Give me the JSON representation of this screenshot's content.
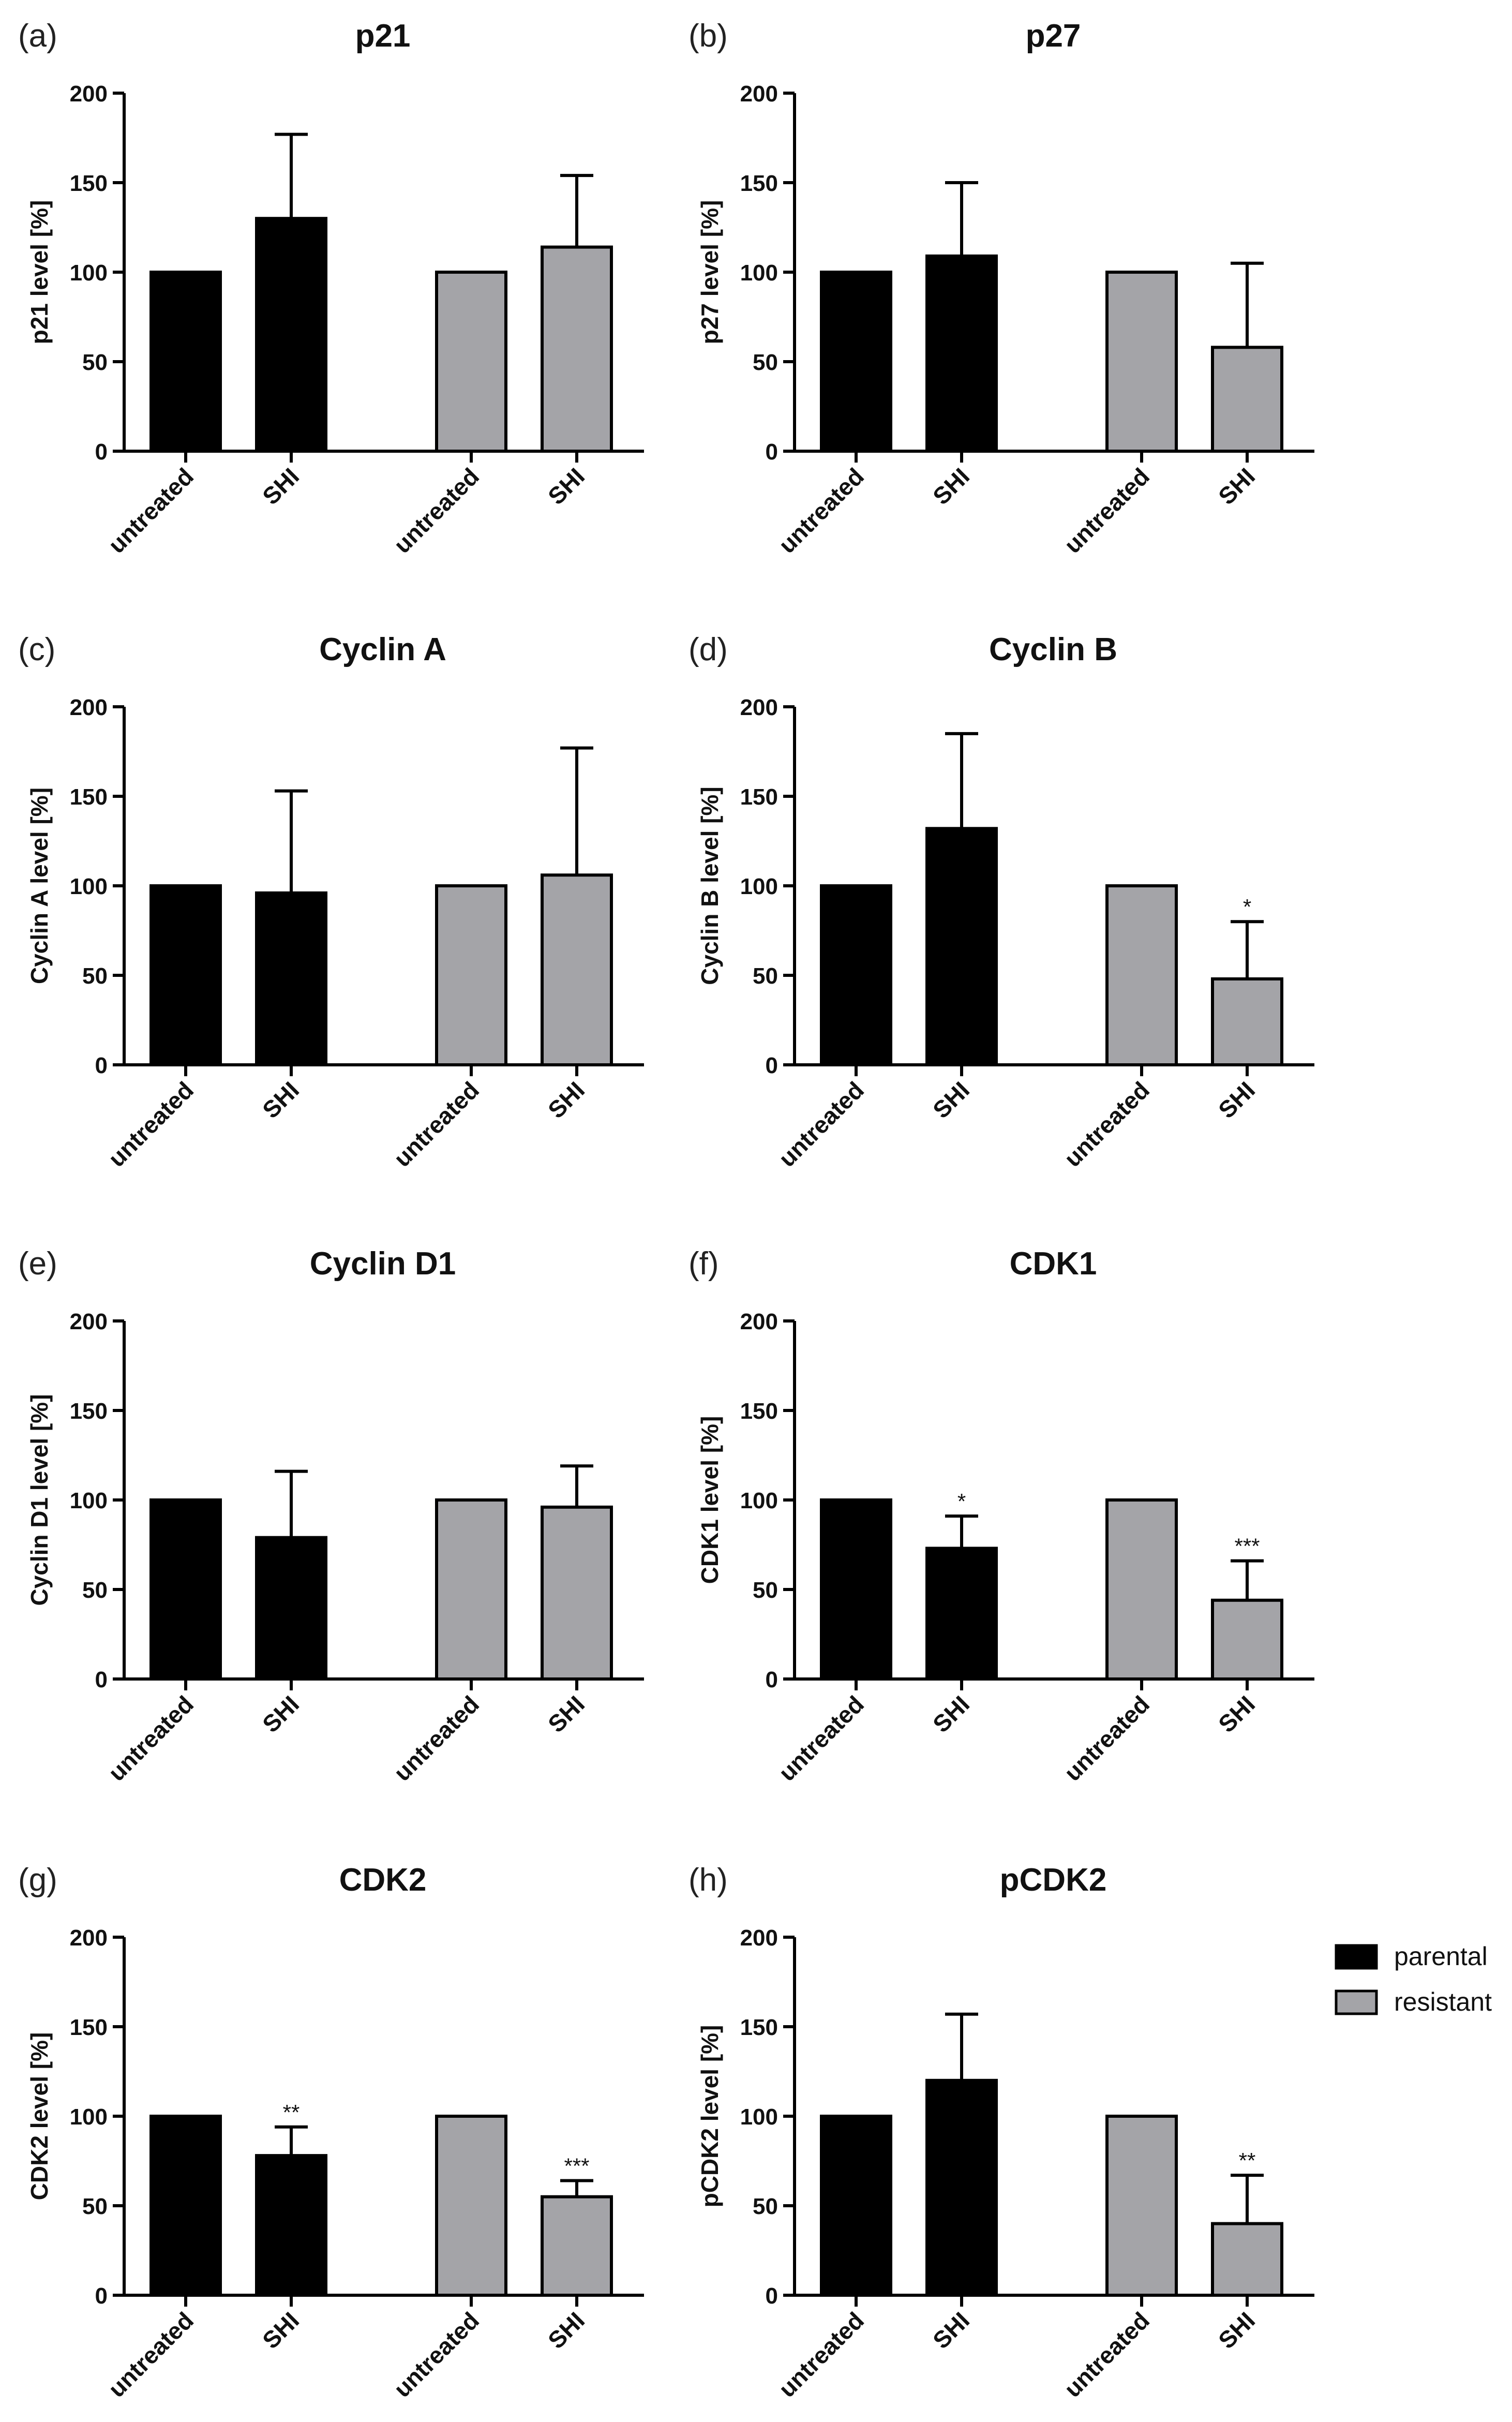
{
  "legend": {
    "items": [
      {
        "label": "parental",
        "color": "#000000"
      },
      {
        "label": "resistant",
        "color": "#a4a4a8"
      }
    ]
  },
  "chart_data": [
    {
      "panel": "(a)",
      "title": "p21",
      "type": "bar",
      "ylabel": "p21 level [%]",
      "ylim": [
        0,
        200
      ],
      "yticks": [
        0,
        50,
        100,
        150,
        200
      ],
      "categories": [
        "untreated",
        "SHI",
        "untreated",
        "SHI"
      ],
      "groups": [
        "parental",
        "parental",
        "resistant",
        "resistant"
      ],
      "values": [
        100,
        130,
        100,
        114
      ],
      "errors": [
        0,
        47,
        0,
        40
      ],
      "significance": [
        "",
        "",
        "",
        ""
      ]
    },
    {
      "panel": "(b)",
      "title": "p27",
      "type": "bar",
      "ylabel": "p27 level [%]",
      "ylim": [
        0,
        200
      ],
      "yticks": [
        0,
        50,
        100,
        150,
        200
      ],
      "categories": [
        "untreated",
        "SHI",
        "untreated",
        "SHI"
      ],
      "groups": [
        "parental",
        "parental",
        "resistant",
        "resistant"
      ],
      "values": [
        100,
        109,
        100,
        58
      ],
      "errors": [
        0,
        41,
        0,
        47
      ],
      "significance": [
        "",
        "",
        "",
        ""
      ]
    },
    {
      "panel": "(c)",
      "title": "Cyclin A",
      "type": "bar",
      "ylabel": "Cyclin A level [%]",
      "ylim": [
        0,
        200
      ],
      "yticks": [
        0,
        50,
        100,
        150,
        200
      ],
      "categories": [
        "untreated",
        "SHI",
        "untreated",
        "SHI"
      ],
      "groups": [
        "parental",
        "parental",
        "resistant",
        "resistant"
      ],
      "values": [
        100,
        96,
        100,
        106
      ],
      "errors": [
        0,
        57,
        0,
        71
      ],
      "significance": [
        "",
        "",
        "",
        ""
      ]
    },
    {
      "panel": "(d)",
      "title": "Cyclin B",
      "type": "bar",
      "ylabel": "Cyclin B level [%]",
      "ylim": [
        0,
        200
      ],
      "yticks": [
        0,
        50,
        100,
        150,
        200
      ],
      "categories": [
        "untreated",
        "SHI",
        "untreated",
        "SHI"
      ],
      "groups": [
        "parental",
        "parental",
        "resistant",
        "resistant"
      ],
      "values": [
        100,
        132,
        100,
        48
      ],
      "errors": [
        0,
        53,
        0,
        32
      ],
      "significance": [
        "",
        "",
        "",
        "*"
      ]
    },
    {
      "panel": "(e)",
      "title": "Cyclin D1",
      "type": "bar",
      "ylabel": "Cyclin D1 level [%]",
      "ylim": [
        0,
        200
      ],
      "yticks": [
        0,
        50,
        100,
        150,
        200
      ],
      "categories": [
        "untreated",
        "SHI",
        "untreated",
        "SHI"
      ],
      "groups": [
        "parental",
        "parental",
        "resistant",
        "resistant"
      ],
      "values": [
        100,
        79,
        100,
        96
      ],
      "errors": [
        0,
        37,
        0,
        23
      ],
      "significance": [
        "",
        "",
        "",
        ""
      ]
    },
    {
      "panel": "(f)",
      "title": "CDK1",
      "type": "bar",
      "ylabel": "CDK1 level [%]",
      "ylim": [
        0,
        200
      ],
      "yticks": [
        0,
        50,
        100,
        150,
        200
      ],
      "categories": [
        "untreated",
        "SHI",
        "untreated",
        "SHI"
      ],
      "groups": [
        "parental",
        "parental",
        "resistant",
        "resistant"
      ],
      "values": [
        100,
        73,
        100,
        44
      ],
      "errors": [
        0,
        18,
        0,
        22
      ],
      "significance": [
        "",
        "*",
        "",
        "***"
      ]
    },
    {
      "panel": "(g)",
      "title": "CDK2",
      "type": "bar",
      "ylabel": "CDK2 level [%]",
      "ylim": [
        0,
        200
      ],
      "yticks": [
        0,
        50,
        100,
        150,
        200
      ],
      "categories": [
        "untreated",
        "SHI",
        "untreated",
        "SHI"
      ],
      "groups": [
        "parental",
        "parental",
        "resistant",
        "resistant"
      ],
      "values": [
        100,
        78,
        100,
        55
      ],
      "errors": [
        0,
        16,
        0,
        9
      ],
      "significance": [
        "",
        "**",
        "",
        "***"
      ]
    },
    {
      "panel": "(h)",
      "title": "pCDK2",
      "type": "bar",
      "ylabel": "pCDK2 level [%]",
      "ylim": [
        0,
        200
      ],
      "yticks": [
        0,
        50,
        100,
        150,
        200
      ],
      "categories": [
        "untreated",
        "SHI",
        "untreated",
        "SHI"
      ],
      "groups": [
        "parental",
        "parental",
        "resistant",
        "resistant"
      ],
      "values": [
        100,
        120,
        100,
        40
      ],
      "errors": [
        0,
        37,
        0,
        27
      ],
      "significance": [
        "",
        "",
        "",
        "**"
      ]
    }
  ]
}
